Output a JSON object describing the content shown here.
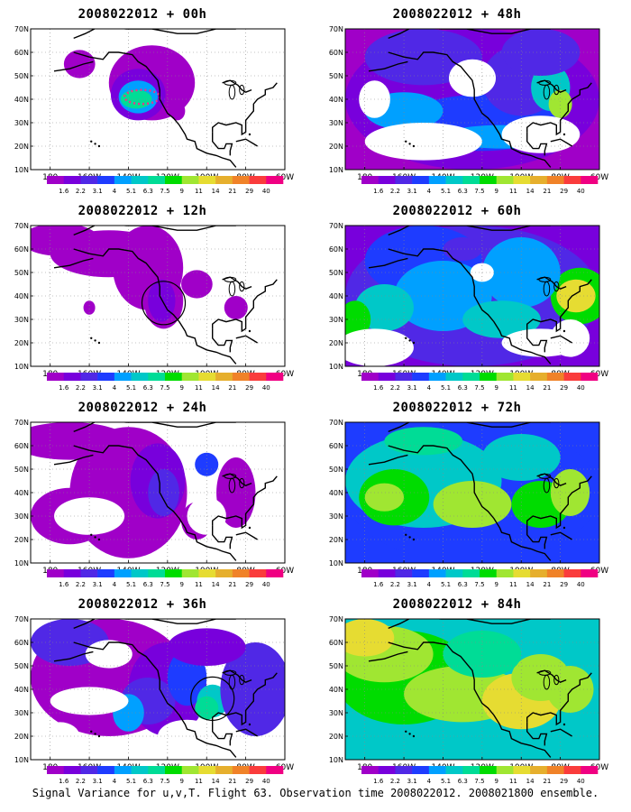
{
  "panels": [
    {
      "title": "2008022012 + 00h",
      "lead": "00h",
      "col": 0,
      "row": 0,
      "blobs": "p00",
      "circle": null
    },
    {
      "title": "2008022012 + 48h",
      "lead": "48h",
      "col": 1,
      "row": 0,
      "blobs": "p48",
      "circle": null
    },
    {
      "title": "2008022012 + 12h",
      "lead": "12h",
      "col": 0,
      "row": 1,
      "blobs": "p12",
      "circle": {
        "lon": -122,
        "lat": 37
      }
    },
    {
      "title": "2008022012 + 60h",
      "lead": "60h",
      "col": 1,
      "row": 1,
      "blobs": "p60",
      "circle": null
    },
    {
      "title": "2008022012 + 24h",
      "lead": "24h",
      "col": 0,
      "row": 2,
      "blobs": "p24",
      "circle": null
    },
    {
      "title": "2008022012 + 72h",
      "lead": "72h",
      "col": 1,
      "row": 2,
      "blobs": "p72",
      "circle": null
    },
    {
      "title": "2008022012 + 36h",
      "lead": "36h",
      "col": 0,
      "row": 3,
      "blobs": "p36",
      "circle": {
        "lon": -97,
        "lat": 36
      }
    },
    {
      "title": "2008022012 + 84h",
      "lead": "84h",
      "col": 1,
      "row": 3,
      "blobs": "p84",
      "circle": null
    }
  ],
  "axes": {
    "lon_ticks": [
      "180",
      "160W",
      "140W",
      "120W",
      "100W",
      "80W",
      "60W"
    ],
    "lat_ticks": [
      "70N",
      "60N",
      "50N",
      "40N",
      "30N",
      "20N",
      "10N"
    ],
    "lon_range": [
      -190,
      -60
    ],
    "lat_range": [
      10,
      70
    ]
  },
  "colorbar": {
    "labels": [
      "1.6",
      "2.2",
      "3.1",
      "4",
      "5.1",
      "6.3",
      "7.5",
      "9",
      "11",
      "14",
      "21",
      "29",
      "40"
    ],
    "colors": [
      "#a000c8",
      "#7800dc",
      "#5028e6",
      "#1e3cff",
      "#00a0ff",
      "#00c8c8",
      "#00dc96",
      "#00dc00",
      "#a0e632",
      "#e6dc32",
      "#e6af2d",
      "#f08228",
      "#fa3c3c",
      "#f00082"
    ]
  },
  "footer": "Signal Variance for u,v,T. Flight 63. Observation time 2008022012. 2008021800 ensemble."
}
